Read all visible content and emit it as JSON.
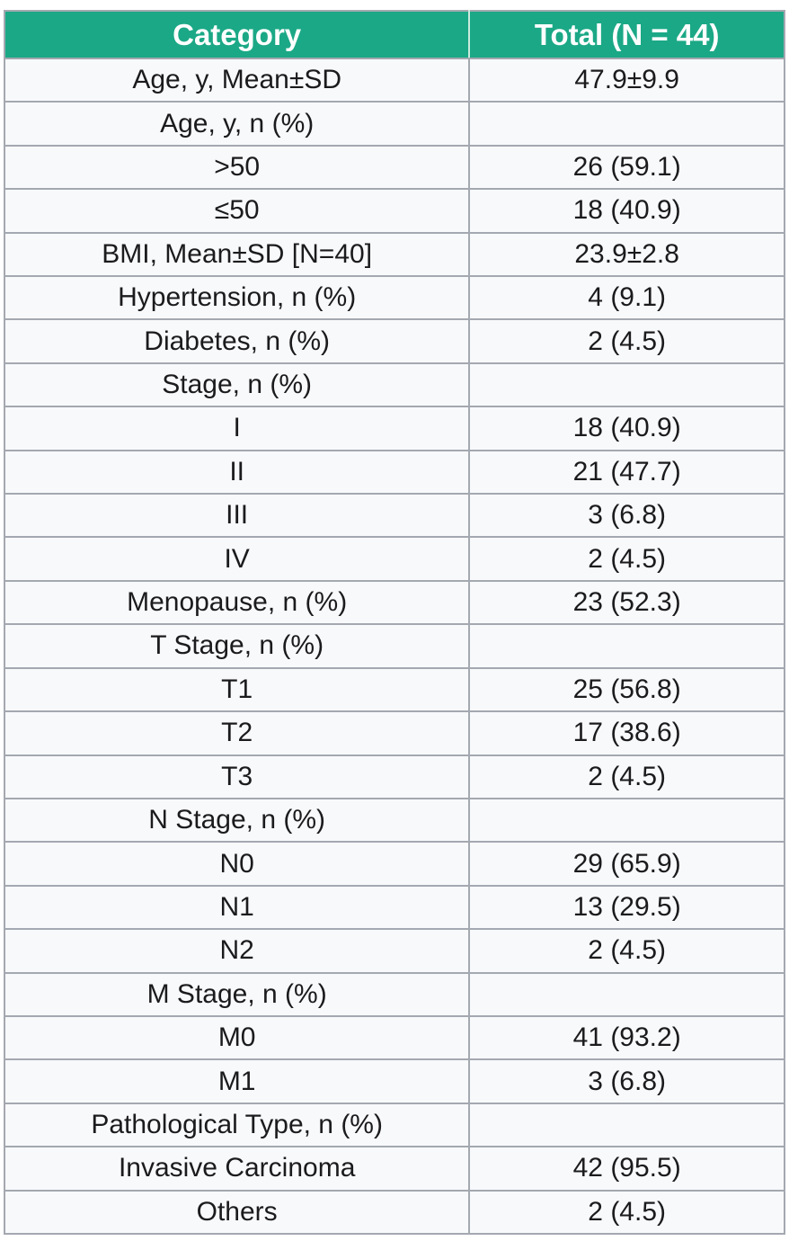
{
  "table": {
    "header": {
      "category_label": "Category",
      "total_label": "Total (N = 44)"
    },
    "rows": [
      {
        "category": "Age, y, Mean±SD",
        "value": "47.9±9.9"
      },
      {
        "category": "Age, y, n (%)",
        "value": ""
      },
      {
        "category": ">50",
        "value": "26 (59.1)"
      },
      {
        "category": "≤50",
        "value": "18 (40.9)"
      },
      {
        "category": "BMI, Mean±SD [N=40]",
        "value": "23.9±2.8"
      },
      {
        "category": "Hypertension, n (%)",
        "value": "4 (9.1)"
      },
      {
        "category": "Diabetes, n (%)",
        "value": "2 (4.5)"
      },
      {
        "category": "Stage, n (%)",
        "value": ""
      },
      {
        "category": "I",
        "value": "18 (40.9)"
      },
      {
        "category": "II",
        "value": "21 (47.7)"
      },
      {
        "category": "III",
        "value": "3 (6.8)"
      },
      {
        "category": "IV",
        "value": "2 (4.5)"
      },
      {
        "category": "Menopause, n (%)",
        "value": "23 (52.3)"
      },
      {
        "category": "T Stage, n (%)",
        "value": ""
      },
      {
        "category": "T1",
        "value": "25 (56.8)"
      },
      {
        "category": "T2",
        "value": "17 (38.6)"
      },
      {
        "category": "T3",
        "value": "2 (4.5)"
      },
      {
        "category": "N Stage, n (%)",
        "value": ""
      },
      {
        "category": "N0",
        "value": "29 (65.9)"
      },
      {
        "category": "N1",
        "value": "13 (29.5)"
      },
      {
        "category": "N2",
        "value": "2 (4.5)"
      },
      {
        "category": "M Stage, n (%)",
        "value": ""
      },
      {
        "category": "M0",
        "value": "41 (93.2)"
      },
      {
        "category": "M1",
        "value": "3 (6.8)"
      },
      {
        "category": "Pathological Type, n (%)",
        "value": ""
      },
      {
        "category": "Invasive Carcinoma",
        "value": "42 (95.5)"
      },
      {
        "category": "Others",
        "value": "2 (4.5)"
      }
    ],
    "colors": {
      "header_bg": "#1BA886",
      "header_text": "#FFFFFF",
      "header_divider": "#CBEADF",
      "grid_border": "#A4A8B0",
      "row_bg": "#F8F9FB",
      "text": "#1B1B1D"
    }
  }
}
